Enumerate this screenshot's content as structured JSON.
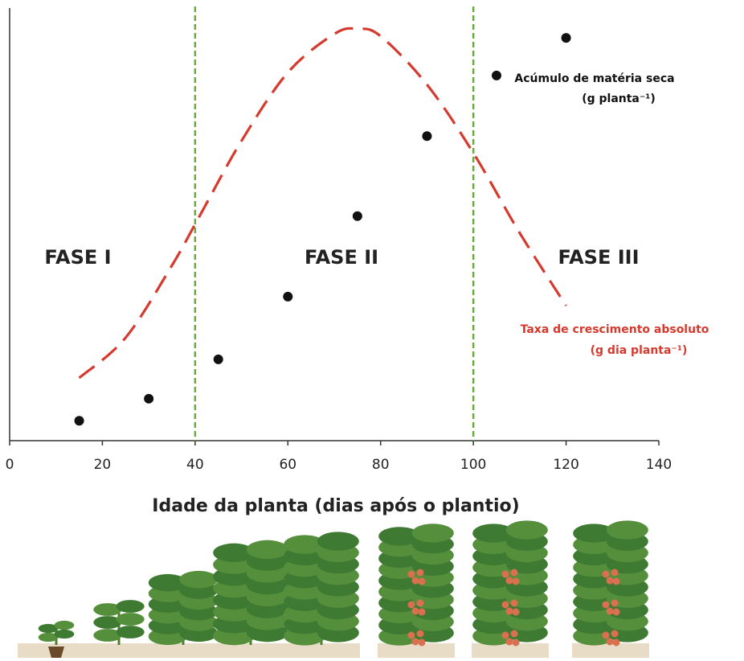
{
  "chart_data": {
    "type": "scatter",
    "xlabel": "Idade da planta (dias após o plantio)",
    "xlim": [
      0,
      140
    ],
    "xticks": [
      0,
      20,
      40,
      60,
      80,
      100,
      120,
      140
    ],
    "ylim": [
      0,
      100
    ],
    "phase_boundaries": [
      40,
      100
    ],
    "phase_boundary_color": "#6aa842",
    "phases": [
      "FASE I",
      "FASE II",
      "FASE III"
    ],
    "series": [
      {
        "name": "Acúmulo de matéria seca",
        "unit": "(g planta⁻¹)",
        "type": "scatter",
        "color": "#111111",
        "x": [
          15,
          30,
          45,
          60,
          75,
          90,
          105,
          120
        ],
        "values": [
          4.6,
          9.7,
          18.8,
          33.3,
          51.9,
          70.4,
          84.4,
          93.1
        ]
      },
      {
        "name": "Taxa de crescimento absoluto",
        "unit": "(g dia planta⁻¹)",
        "type": "line",
        "dashed": true,
        "color": "#d43a2e",
        "x": [
          15,
          25,
          35,
          41,
          50,
          60,
          70,
          75,
          80,
          90,
          100,
          110,
          120
        ],
        "values": [
          14.5,
          23.8,
          40.5,
          52,
          69.3,
          85.1,
          94,
          95.2,
          93.5,
          82.3,
          66.5,
          48,
          31.2
        ]
      }
    ]
  }
}
